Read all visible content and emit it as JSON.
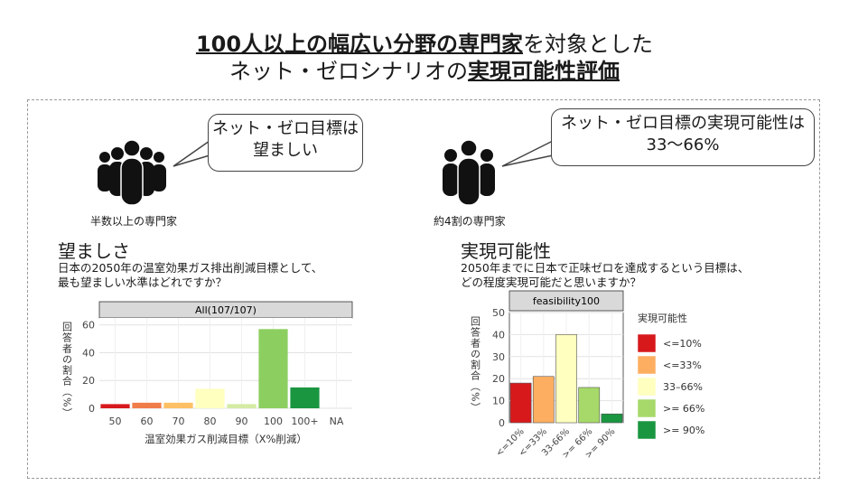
{
  "title": {
    "line1_bold": "100人以上の幅広い分野の専門家",
    "line1_rest": "を対象とした",
    "line2_plain": "ネット・ゼロシナリオの",
    "line2_bold": "実現可能性評価"
  },
  "left": {
    "bubble_line1": "ネット・ゼロ目標は",
    "bubble_line2": "望ましい",
    "people_caption": "半数以上の専門家",
    "heading": "望ましさ",
    "question_line1": "日本の2050年の温室効果ガス排出削減目標として、",
    "question_line2": "最も望ましい水準はどれですか？"
  },
  "right": {
    "bubble_line1": "ネット・ゼロ目標の実現可能性は",
    "bubble_line2": "33～66%",
    "people_caption": "約4割の専門家",
    "heading": "実現可能性",
    "question_line1": "2050年までに日本で正味ゼロを達成するという目標は、",
    "question_line2": "どの程度実現可能だと思いますか？"
  },
  "icons": [
    "people-group-icon",
    "people-group-icon"
  ],
  "chart_data": [
    {
      "type": "bar",
      "panel_title": "All(107/107)",
      "categories": [
        "50",
        "60",
        "70",
        "80",
        "90",
        "100",
        "100+",
        "NA"
      ],
      "values": [
        3,
        4,
        4,
        14,
        3,
        57,
        15,
        0
      ],
      "colors": [
        "#d7191c",
        "#f07c4a",
        "#fdc065",
        "#ffffbf",
        "#d4eba3",
        "#8ccf60",
        "#1a9641",
        "#cccccc"
      ],
      "xlabel": "温室効果ガス削減目標（X%削減）",
      "ylabel": "回答者の割合（%）",
      "ylim": [
        0,
        65
      ],
      "yticks": [
        0,
        20,
        40,
        60
      ],
      "grid": true
    },
    {
      "type": "bar",
      "panel_title": "feasibility100",
      "categories": [
        "<=10%",
        "<=33%",
        "33-66%",
        ">= 66%",
        ">= 90%"
      ],
      "values": [
        18,
        21,
        40,
        16,
        4
      ],
      "colors": [
        "#d7191c",
        "#fdae61",
        "#ffffbf",
        "#a6d96a",
        "#1a9641"
      ],
      "ylabel": "回答者の割合（%）",
      "ylim": [
        0,
        50
      ],
      "yticks": [
        0,
        10,
        20,
        30,
        40,
        50
      ],
      "grid": true,
      "legend_title": "実現可能性",
      "legend": [
        "<=10%",
        "<=33%",
        "33–66%",
        ">= 66%",
        ">= 90%"
      ],
      "legend_placement": "right"
    }
  ]
}
